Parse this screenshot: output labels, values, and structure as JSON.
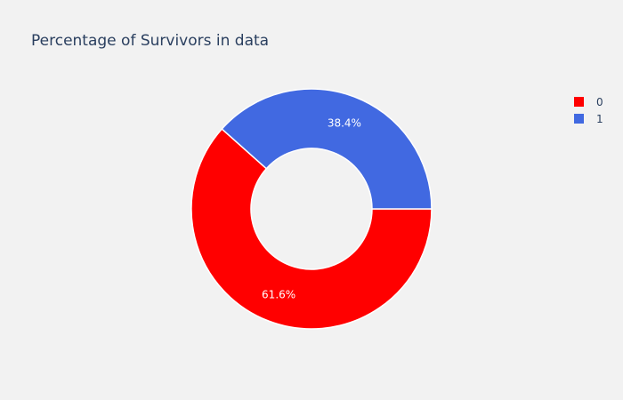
{
  "chart_data": {
    "type": "pie",
    "hole": true,
    "title": "Percentage of Survivors in data",
    "categories": [
      "0",
      "1"
    ],
    "values": [
      61.6,
      38.4
    ],
    "labels": [
      "61.6%",
      "38.4%"
    ],
    "colors": [
      "#ff0000",
      "#4169e1"
    ],
    "legend": [
      "0",
      "1"
    ],
    "legend_position": "top-right"
  }
}
